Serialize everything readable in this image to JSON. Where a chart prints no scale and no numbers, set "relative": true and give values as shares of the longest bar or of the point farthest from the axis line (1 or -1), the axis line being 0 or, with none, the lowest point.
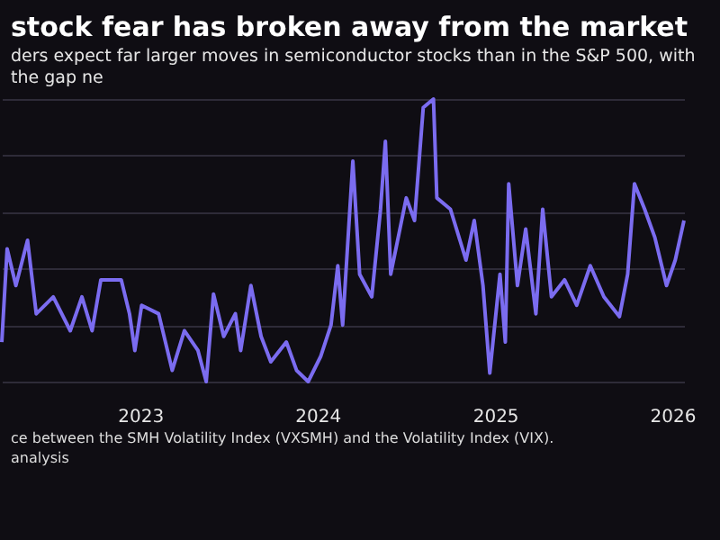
{
  "chart_data": {
    "type": "line",
    "title": "stock fear has broken away from the market",
    "subtitle": "ders expect far larger moves in semiconductor stocks than in the S&P 500, with the gap ne",
    "annotations": [
      "ce between the SMH Volatility Index (VXSMH) and the Volatility Index (VIX).",
      "analysis"
    ],
    "relative": true,
    "grid": "y",
    "marker": "none",
    "line_style": "solid",
    "xlim": [
      "2022-03-22",
      "2026-01-25"
    ],
    "xticks": [
      "2023",
      "2024",
      "2025",
      "2026"
    ],
    "x": [
      "2022-03-22",
      "2022-04-02",
      "2022-04-20",
      "2022-05-14",
      "2022-06-01",
      "2022-07-06",
      "2022-08-10",
      "2022-09-03",
      "2022-09-24",
      "2022-10-12",
      "2022-11-23",
      "2022-12-10",
      "2022-12-21",
      "2023-01-04",
      "2023-02-08",
      "2023-03-08",
      "2023-04-02",
      "2023-04-30",
      "2023-05-17",
      "2023-06-01",
      "2023-06-22",
      "2023-07-16",
      "2023-07-27",
      "2023-08-17",
      "2023-09-07",
      "2023-09-27",
      "2023-10-29",
      "2023-11-19",
      "2023-12-13",
      "2024-01-08",
      "2024-01-29",
      "2024-02-12",
      "2024-02-22",
      "2024-03-14",
      "2024-03-28",
      "2024-04-22",
      "2024-05-10",
      "2024-05-20",
      "2024-05-31",
      "2024-07-02",
      "2024-07-19",
      "2024-08-06",
      "2024-08-27",
      "2024-09-03",
      "2024-10-01",
      "2024-11-02",
      "2024-11-19",
      "2024-12-07",
      "2024-12-21",
      "2025-01-11",
      "2025-01-22",
      "2025-01-29",
      "2025-02-16",
      "2025-03-05",
      "2025-03-26",
      "2025-04-09",
      "2025-04-27",
      "2025-05-24",
      "2025-06-18",
      "2025-07-16",
      "2025-08-13",
      "2025-09-14",
      "2025-10-01",
      "2025-10-15",
      "2025-11-05",
      "2025-11-26",
      "2025-12-20",
      "2026-01-07",
      "2026-01-25"
    ],
    "series": [
      {
        "color": "#7b6cf0",
        "values": [
          0.14,
          0.47,
          0.34,
          0.5,
          0.24,
          0.3,
          0.18,
          0.3,
          0.18,
          0.36,
          0.36,
          0.24,
          0.11,
          0.27,
          0.24,
          0.04,
          0.18,
          0.11,
          0,
          0.31,
          0.16,
          0.24,
          0.11,
          0.34,
          0.16,
          0.07,
          0.14,
          0.04,
          0,
          0.09,
          0.2,
          0.41,
          0.2,
          0.78,
          0.38,
          0.3,
          0.61,
          0.85,
          0.38,
          0.65,
          0.57,
          0.97,
          1,
          0.65,
          0.61,
          0.43,
          0.57,
          0.34,
          0.03,
          0.38,
          0.14,
          0.7,
          0.34,
          0.54,
          0.24,
          0.61,
          0.3,
          0.36,
          0.27,
          0.41,
          0.3,
          0.23,
          0.38,
          0.7,
          0.61,
          0.51,
          0.34,
          0.43,
          0.57
        ]
      }
    ]
  }
}
